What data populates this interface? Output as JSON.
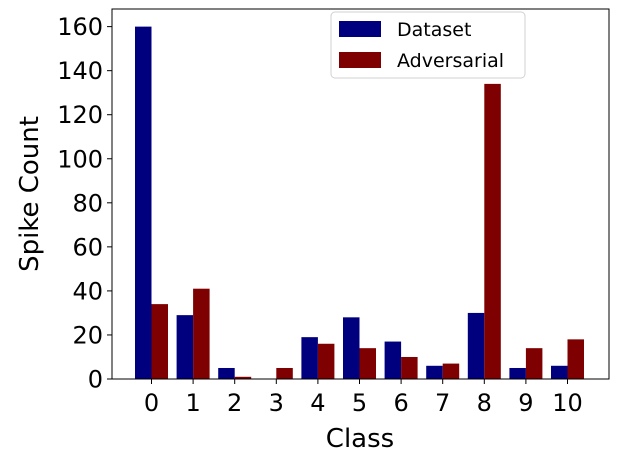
{
  "chart_data": {
    "type": "bar",
    "xlabel": "Class",
    "ylabel": "Spike Count",
    "categories": [
      "0",
      "1",
      "2",
      "3",
      "4",
      "5",
      "6",
      "7",
      "8",
      "9",
      "10"
    ],
    "ylim": [
      0,
      168
    ],
    "yticks": [
      0,
      20,
      40,
      60,
      80,
      100,
      120,
      140,
      160
    ],
    "legend_position": "top-center",
    "series": [
      {
        "name": "Dataset",
        "color": "#00007f",
        "values": [
          160,
          29,
          5,
          0,
          19,
          28,
          17,
          6,
          30,
          5,
          6
        ]
      },
      {
        "name": "Adversarial",
        "color": "#7f0000",
        "values": [
          34,
          41,
          1,
          5,
          16,
          14,
          10,
          7,
          134,
          14,
          18
        ]
      }
    ]
  }
}
